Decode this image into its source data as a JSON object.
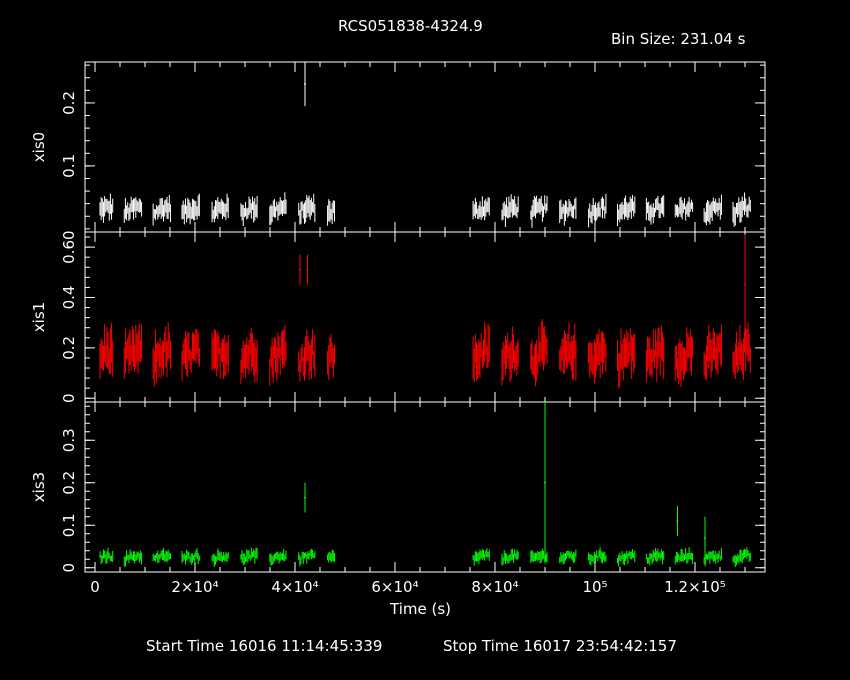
{
  "header": {
    "title": "RCS051838-4324.9",
    "bin_size": "Bin Size: 231.04 s"
  },
  "footer": {
    "start_time": "Start Time 16016 11:14:45:339",
    "stop_time": "Stop Time 16017 23:54:42:157"
  },
  "colors": {
    "xis0": "#ffffff",
    "xis1": "#ff0000",
    "xis3": "#00ff00",
    "axes": "#ffffff"
  },
  "chart_data": {
    "type": "scatter",
    "xlabel": "Time (s)",
    "xlim": [
      -2000,
      134000
    ],
    "x_ticks": [
      {
        "value": 0,
        "label": "0"
      },
      {
        "value": 20000,
        "label": "2×10⁴"
      },
      {
        "value": 40000,
        "label": "4×10⁴"
      },
      {
        "value": 60000,
        "label": "6×10⁴"
      },
      {
        "value": 80000,
        "label": "8×10⁴"
      },
      {
        "value": 100000,
        "label": "10⁵"
      },
      {
        "value": 120000,
        "label": "1.2×10⁵"
      }
    ],
    "panels": [
      {
        "name": "xis0",
        "ylabel": "xis0",
        "color": "#ffffff",
        "ylim": [
          -0.005,
          0.265
        ],
        "y_ticks": [
          {
            "value": 0.1,
            "label": "0.1"
          },
          {
            "value": 0.2,
            "label": "0.2"
          }
        ],
        "baseline": 0.024,
        "amplitude": 0.012,
        "spikes": [
          {
            "x": 42000,
            "y": 0.23,
            "err": 0.035
          }
        ]
      },
      {
        "name": "xis1",
        "ylabel": "xis1",
        "color": "#ff0000",
        "ylim": [
          -0.015,
          0.66
        ],
        "y_ticks": [
          {
            "value": 0,
            "label": "0"
          },
          {
            "value": 0.2,
            "label": "0.2"
          },
          {
            "value": 0.4,
            "label": "0.4"
          },
          {
            "value": 0.6,
            "label": "0.60"
          }
        ],
        "baseline": 0.14,
        "amplitude": 0.06,
        "spikes": [
          {
            "x": 41000,
            "y": 0.51,
            "err": 0.06
          },
          {
            "x": 42500,
            "y": 0.51,
            "err": 0.06
          },
          {
            "x": 130000,
            "y": 0.45,
            "err": 0.2
          }
        ]
      },
      {
        "name": "xis3",
        "ylabel": "xis3",
        "color": "#00ff00",
        "ylim": [
          -0.01,
          0.39
        ],
        "y_ticks": [
          {
            "value": 0,
            "label": "0"
          },
          {
            "value": 0.1,
            "label": "0.1"
          },
          {
            "value": 0.2,
            "label": "0.2"
          },
          {
            "value": 0.3,
            "label": "0.3"
          }
        ],
        "baseline": 0.02,
        "amplitude": 0.01,
        "spikes": [
          {
            "x": 42000,
            "y": 0.165,
            "err": 0.035
          },
          {
            "x": 90000,
            "y": 0.2,
            "err": 0.19
          },
          {
            "x": 116500,
            "y": 0.11,
            "err": 0.035
          },
          {
            "x": 122000,
            "y": 0.07,
            "err": 0.05
          }
        ]
      }
    ],
    "data_segments": [
      [
        1000,
        48000
      ],
      [
        74000,
        133000
      ]
    ],
    "bin_size_s": 231.04
  }
}
